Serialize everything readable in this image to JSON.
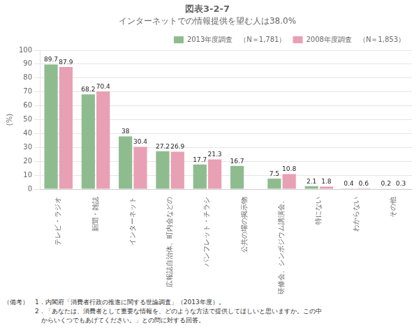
{
  "chart_data": {
    "type": "bar",
    "title": "図表3-2-7",
    "subtitle": "インターネットでの情報提供を望む人は38.0%",
    "categories": [
      "テレビ・ラジオ",
      "新聞・雑誌",
      "インターネット",
      "広報誌自治体、町内会などの",
      "パンフレット・チラシ",
      "公共の場の掲示物",
      "研修会、シンポジウム講演会、",
      "特にない",
      "わからない",
      "その他"
    ],
    "series": [
      {
        "name": "2013年度調査　（N＝1,781）",
        "color": "#8fbc8f",
        "values": [
          89.7,
          68.2,
          38.0,
          27.2,
          17.7,
          16.7,
          7.5,
          2.1,
          0.4,
          0.2
        ]
      },
      {
        "name": "2008年度調査　（N＝1,853）",
        "color": "#e8a0b4",
        "values": [
          87.9,
          70.4,
          30.4,
          26.9,
          21.3,
          null,
          10.8,
          1.8,
          0.6,
          0.3
        ]
      }
    ],
    "y_label": "(%)",
    "ylim": [
      0,
      100
    ],
    "yticks": [
      0,
      10,
      20,
      30,
      40,
      50,
      60,
      70,
      80,
      90,
      100
    ],
    "grid": true,
    "legend": "upper right",
    "data_labels": true,
    "annotations": [
      "（備考）　1．内閣府「消費者行政の推進に関する世論調査」（2013年度）。",
      "　　　　　2．「あなたは、消費者として重要な情報を、どのような方法で提供してほしいと思いますか。この中",
      "　　　　　　からいくつでもあげてください。」との問に対する回答。"
    ]
  }
}
